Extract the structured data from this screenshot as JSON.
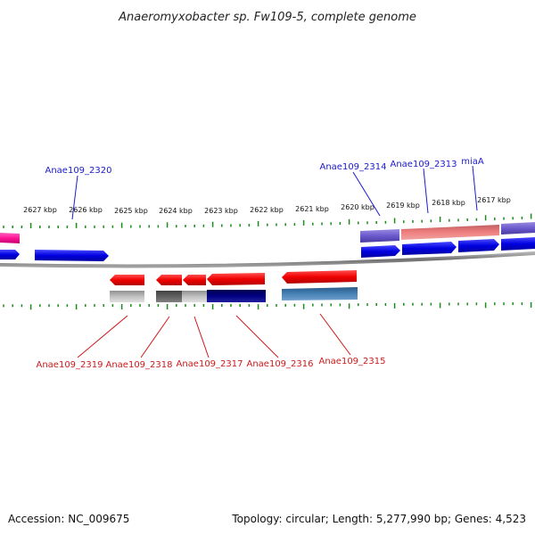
{
  "title": "Anaeromyxobacter sp. Fw109-5, complete genome",
  "footer": {
    "accession": "Accession: NC_009675",
    "summary": "Topology: circular; Length: 5,277,990 bp; Genes: 4,523"
  },
  "kbp_labels": [
    "2627 kbp",
    "2626 kbp",
    "2625 kbp",
    "2624 kbp",
    "2623 kbp",
    "2622 kbp",
    "2621 kbp",
    "2620 kbp",
    "2619 kbp",
    "2618 kbp",
    "2617 kbp"
  ],
  "top_labels": [
    "Anae109_2320",
    "Anae109_2314",
    "Anae109_2313",
    "miaA"
  ],
  "bottom_labels": [
    "Anae109_2319",
    "Anae109_2318",
    "Anae109_2317",
    "Anae109_2316",
    "Anae109_2315"
  ],
  "colors": {
    "forward_gene": "#0a0ae6",
    "reverse_gene": "#e60a0a",
    "backbone": "#808080",
    "ticks": "#1a8a1a",
    "label_top": "#1a1acc",
    "label_bottom": "#cc1a1a"
  }
}
